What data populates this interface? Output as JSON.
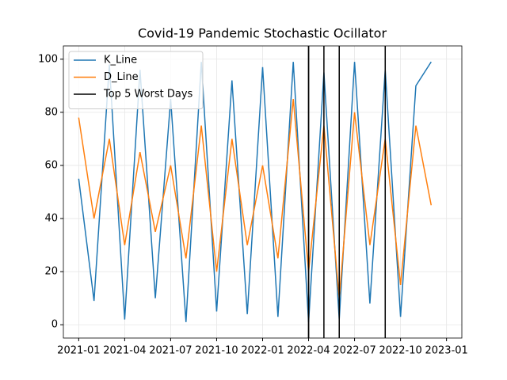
{
  "chart_data": {
    "type": "line",
    "title": "Covid-19 Pandemic Stochastic Ocillator",
    "x": [
      "2021-01",
      "2021-02",
      "2021-03",
      "2021-04",
      "2021-05",
      "2021-06",
      "2021-07",
      "2021-08",
      "2021-09",
      "2021-10",
      "2021-11",
      "2021-12",
      "2022-01",
      "2022-02",
      "2022-03",
      "2022-04",
      "2022-05",
      "2022-06",
      "2022-07",
      "2022-08",
      "2022-09",
      "2022-10",
      "2022-11",
      "2022-12"
    ],
    "series": [
      {
        "name": "K_Line",
        "color": "#1f77b4",
        "values": [
          55,
          9,
          98,
          2,
          96,
          10,
          85,
          1,
          99,
          5,
          92,
          4,
          97,
          3,
          99,
          1,
          95,
          2,
          99,
          8,
          96,
          3,
          90,
          99
        ]
      },
      {
        "name": "D_Line",
        "color": "#ff7f0e",
        "values": [
          78,
          40,
          70,
          30,
          65,
          35,
          60,
          25,
          75,
          20,
          70,
          30,
          60,
          25,
          85,
          20,
          75,
          10,
          80,
          30,
          70,
          15,
          75,
          45
        ]
      }
    ],
    "vlines": {
      "name": "Top 5 Worst Days",
      "color": "#000000",
      "x": [
        "2022-04",
        "2022-04",
        "2022-05",
        "2022-06",
        "2022-09"
      ]
    },
    "xlim": [
      "2020-12",
      "2023-02"
    ],
    "xticks": [
      "2021-01",
      "2021-04",
      "2021-07",
      "2021-10",
      "2022-01",
      "2022-04",
      "2022-07",
      "2022-10",
      "2023-01"
    ],
    "ylim": [
      -5,
      105
    ],
    "yticks": [
      0,
      20,
      40,
      60,
      80,
      100
    ],
    "grid": true,
    "legend": "upper left"
  }
}
